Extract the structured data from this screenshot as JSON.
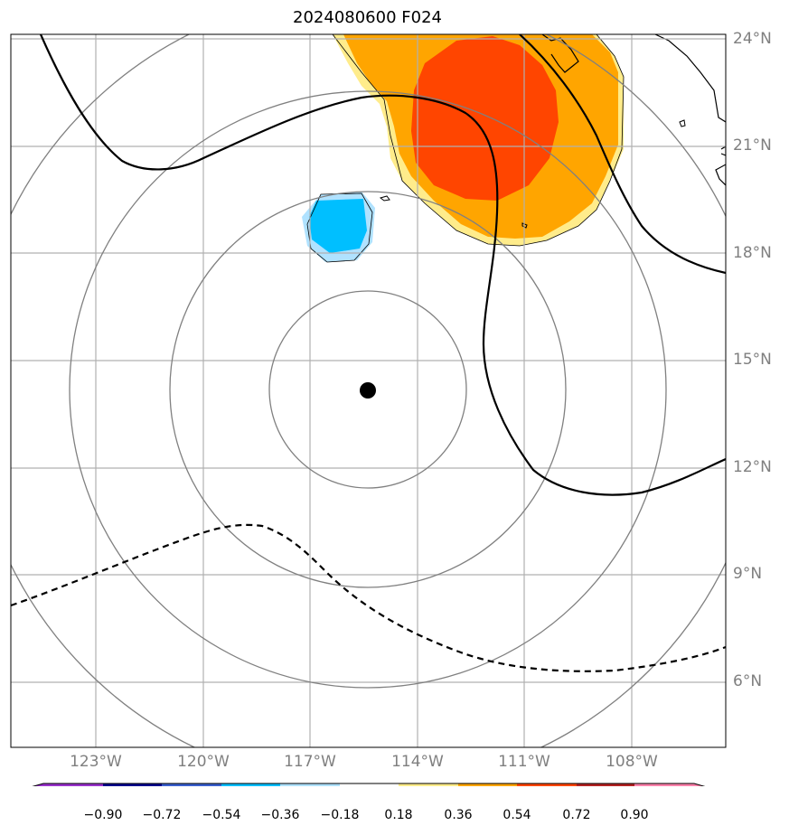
{
  "title": "2024080600 F024",
  "latitude_labels": [
    "24°N",
    "21°N",
    "18°N",
    "15°N",
    "12°N",
    "9°N",
    "6°N"
  ],
  "longitude_labels": [
    "123°W",
    "120°W",
    "117°W",
    "114°W",
    "111°W",
    "108°W"
  ],
  "colorbar": {
    "tick_labels": [
      "−0.90",
      "−0.72",
      "−0.54",
      "−0.36",
      "−0.18",
      "0.18",
      "0.36",
      "0.54",
      "0.72",
      "0.90"
    ],
    "colors": [
      "#9932cc",
      "#00008b",
      "#3a5fcd",
      "#00bfff",
      "#b0e2ff",
      "#ffffff",
      "#ffec8b",
      "#ffa500",
      "#ff4500",
      "#b22222",
      "#ff82ab"
    ]
  },
  "map": {
    "storm_center": {
      "lat": 14.2,
      "lon": -115.4
    },
    "range_ring_count": 4,
    "colors": {
      "warm_light": "#ffec8b",
      "warm_mid": "#ffa500",
      "warm_strong": "#ff4500",
      "cool_light": "#b0e2ff",
      "cool_mid": "#00bfff",
      "ring": "#808080",
      "grid": "#b0b0b0"
    }
  }
}
